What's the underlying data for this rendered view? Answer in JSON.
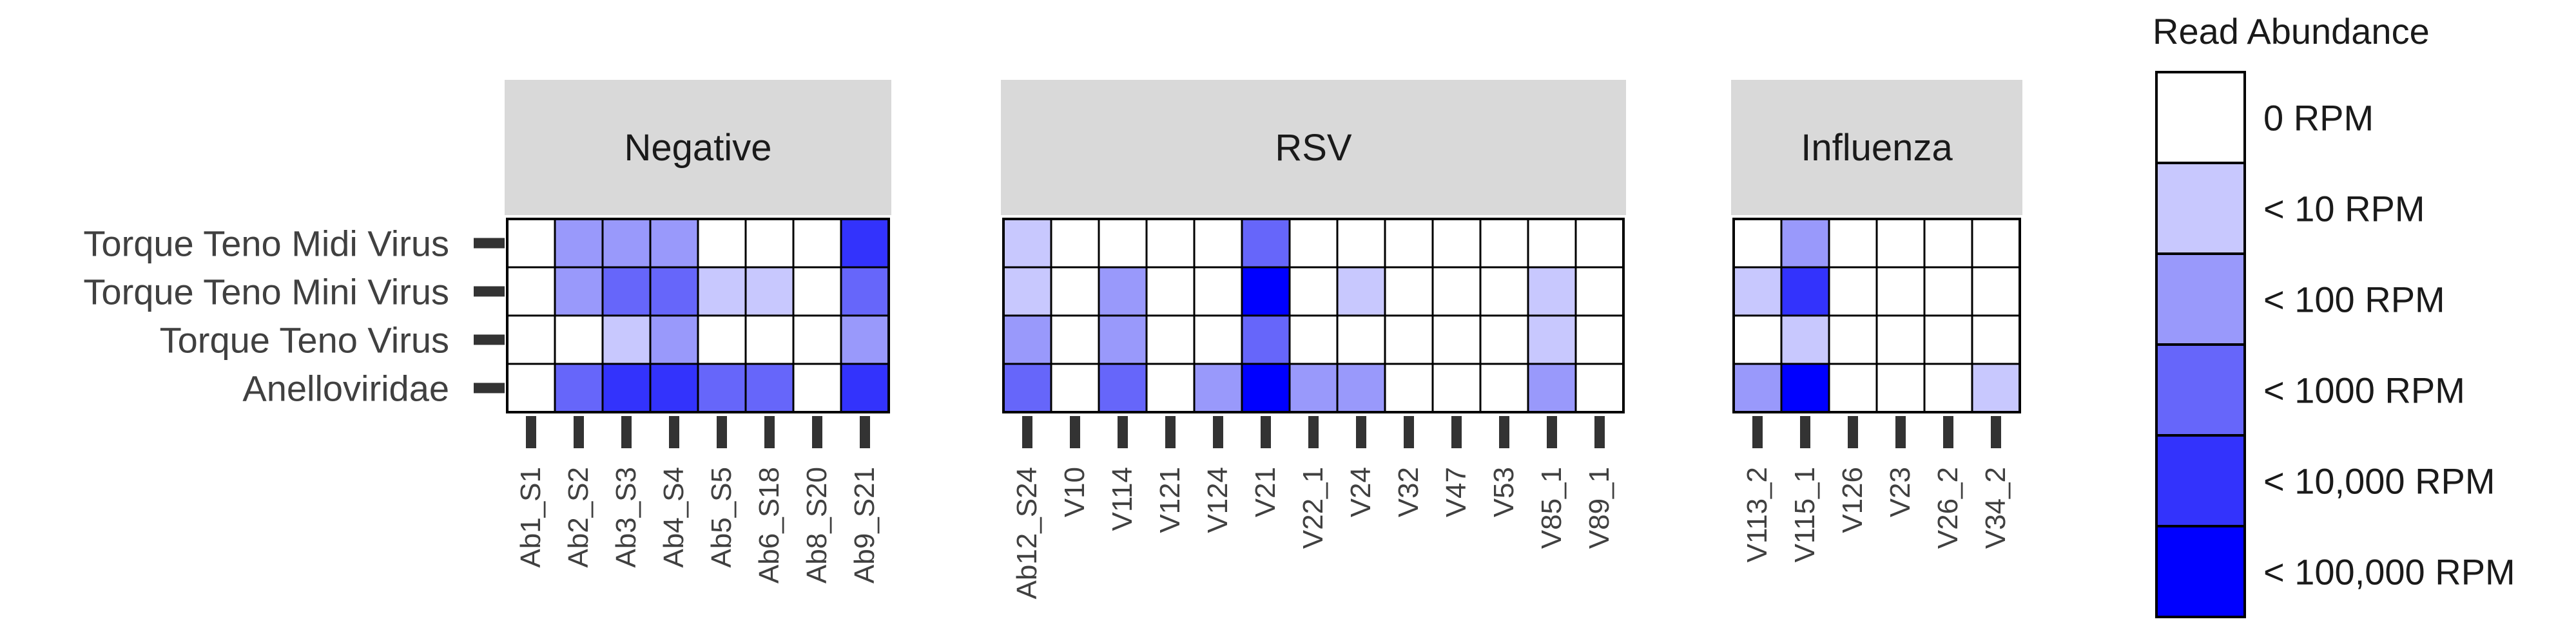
{
  "chart_data": {
    "type": "heatmap",
    "rows": [
      "Torque Teno Midi Virus",
      "Torque Teno Mini Virus",
      "Torque Teno Virus",
      "Anelloviridae"
    ],
    "panels": [
      {
        "title": "Negative",
        "samples": [
          "Ab1_S1",
          "Ab2_S2",
          "Ab3_S3",
          "Ab4_S4",
          "Ab5_S5",
          "Ab6_S18",
          "Ab8_S20",
          "Ab9_S21"
        ],
        "levels": [
          [
            0,
            3,
            3,
            3,
            0,
            0,
            0,
            5
          ],
          [
            0,
            3,
            4,
            4,
            2,
            2,
            0,
            4
          ],
          [
            0,
            0,
            2,
            3,
            0,
            0,
            0,
            3
          ],
          [
            0,
            4,
            5,
            5,
            4,
            4,
            0,
            5
          ]
        ]
      },
      {
        "title": "RSV",
        "samples": [
          "Ab12_S24",
          "V10",
          "V114",
          "V121",
          "V124",
          "V21",
          "V22_1",
          "V24",
          "V32",
          "V47",
          "V53",
          "V85_1",
          "V89_1"
        ],
        "levels": [
          [
            2,
            0,
            0,
            0,
            0,
            4,
            0,
            0,
            0,
            0,
            0,
            0,
            0
          ],
          [
            2,
            0,
            3,
            0,
            0,
            6,
            0,
            2,
            0,
            0,
            0,
            2,
            0
          ],
          [
            3,
            0,
            3,
            0,
            0,
            4,
            0,
            0,
            0,
            0,
            0,
            2,
            0
          ],
          [
            4,
            0,
            4,
            0,
            3,
            6,
            3,
            3,
            0,
            0,
            0,
            3,
            0
          ]
        ]
      },
      {
        "title": "Influenza",
        "samples": [
          "V113_2",
          "V115_1",
          "V126",
          "V23",
          "V26_2",
          "V34_2"
        ],
        "levels": [
          [
            0,
            3,
            0,
            0,
            0,
            0
          ],
          [
            2,
            5,
            0,
            0,
            0,
            0
          ],
          [
            0,
            2,
            0,
            0,
            0,
            0
          ],
          [
            3,
            6,
            0,
            0,
            0,
            2
          ]
        ]
      }
    ],
    "legend": {
      "title": "Read Abundance",
      "entries": [
        "0 RPM",
        "< 10 RPM",
        "< 100 RPM",
        "< 1000 RPM",
        "< 10,000 RPM",
        "< 100,000 RPM"
      ],
      "level_index": [
        0,
        2,
        3,
        4,
        5,
        6
      ],
      "placement": "right"
    },
    "colors": [
      "#ffffff",
      "#d8d8ff",
      "#c8c8fe",
      "#9999fb",
      "#6666fa",
      "#3333fc",
      "#0000ff"
    ],
    "strip_color": "#d9d9d9"
  }
}
